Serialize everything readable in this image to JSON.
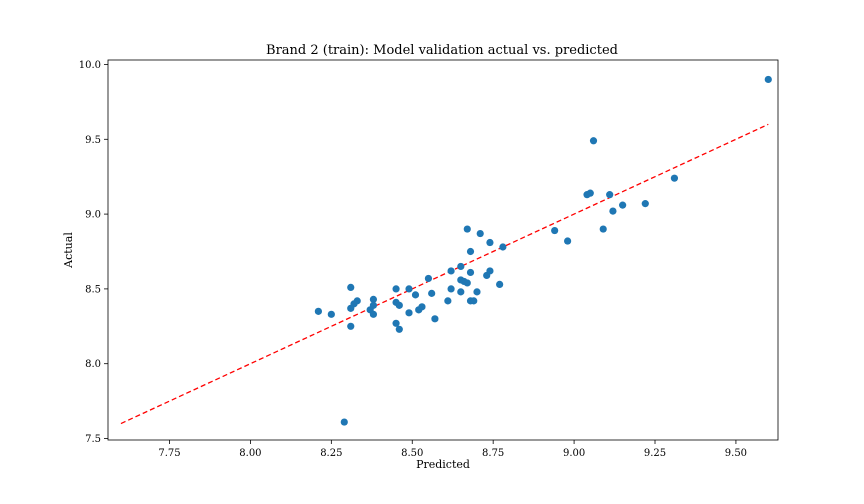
{
  "chart_data": {
    "type": "scatter",
    "title": "Brand 2 (train): Model validation actual vs. predicted",
    "xlabel": "Predicted",
    "ylabel": "Actual",
    "xlim": [
      7.56,
      9.63
    ],
    "ylim": [
      7.49,
      10.03
    ],
    "xticks": [
      7.75,
      8.0,
      8.25,
      8.5,
      8.75,
      9.0,
      9.25,
      9.5
    ],
    "xtick_labels": [
      "7.75",
      "8.00",
      "8.25",
      "8.50",
      "8.75",
      "9.00",
      "9.25",
      "9.50"
    ],
    "yticks": [
      7.5,
      8.0,
      8.5,
      9.0,
      9.5,
      10.0
    ],
    "ytick_labels": [
      "7.5",
      "8.0",
      "8.5",
      "9.0",
      "9.5",
      "10.0"
    ],
    "grid": false,
    "point_color": "#1f77b4",
    "line_color": "#ff0000",
    "reference_line": {
      "style": "dashed",
      "x": [
        7.6,
        9.6
      ],
      "y": [
        7.6,
        9.6
      ]
    },
    "points": [
      [
        9.6,
        9.9
      ],
      [
        9.06,
        9.49
      ],
      [
        9.31,
        9.24
      ],
      [
        9.05,
        9.14
      ],
      [
        9.04,
        9.13
      ],
      [
        9.11,
        9.13
      ],
      [
        9.15,
        9.06
      ],
      [
        9.22,
        9.07
      ],
      [
        9.12,
        9.02
      ],
      [
        9.09,
        8.9
      ],
      [
        8.94,
        8.89
      ],
      [
        8.98,
        8.82
      ],
      [
        8.67,
        8.9
      ],
      [
        8.71,
        8.87
      ],
      [
        8.74,
        8.81
      ],
      [
        8.78,
        8.78
      ],
      [
        8.68,
        8.75
      ],
      [
        8.65,
        8.65
      ],
      [
        8.62,
        8.62
      ],
      [
        8.73,
        8.59
      ],
      [
        8.74,
        8.62
      ],
      [
        8.68,
        8.61
      ],
      [
        8.55,
        8.57
      ],
      [
        8.65,
        8.56
      ],
      [
        8.67,
        8.54
      ],
      [
        8.66,
        8.55
      ],
      [
        8.77,
        8.53
      ],
      [
        8.62,
        8.5
      ],
      [
        8.65,
        8.48
      ],
      [
        8.56,
        8.47
      ],
      [
        8.7,
        8.48
      ],
      [
        8.49,
        8.5
      ],
      [
        8.45,
        8.5
      ],
      [
        8.31,
        8.51
      ],
      [
        8.51,
        8.46
      ],
      [
        8.68,
        8.42
      ],
      [
        8.69,
        8.42
      ],
      [
        8.61,
        8.42
      ],
      [
        8.33,
        8.42
      ],
      [
        8.32,
        8.4
      ],
      [
        8.38,
        8.43
      ],
      [
        8.45,
        8.41
      ],
      [
        8.46,
        8.39
      ],
      [
        8.38,
        8.39
      ],
      [
        8.31,
        8.37
      ],
      [
        8.37,
        8.36
      ],
      [
        8.53,
        8.38
      ],
      [
        8.52,
        8.36
      ],
      [
        8.21,
        8.35
      ],
      [
        8.25,
        8.33
      ],
      [
        8.38,
        8.33
      ],
      [
        8.49,
        8.34
      ],
      [
        8.57,
        8.3
      ],
      [
        8.45,
        8.27
      ],
      [
        8.31,
        8.25
      ],
      [
        8.46,
        8.23
      ],
      [
        8.29,
        7.61
      ]
    ]
  }
}
